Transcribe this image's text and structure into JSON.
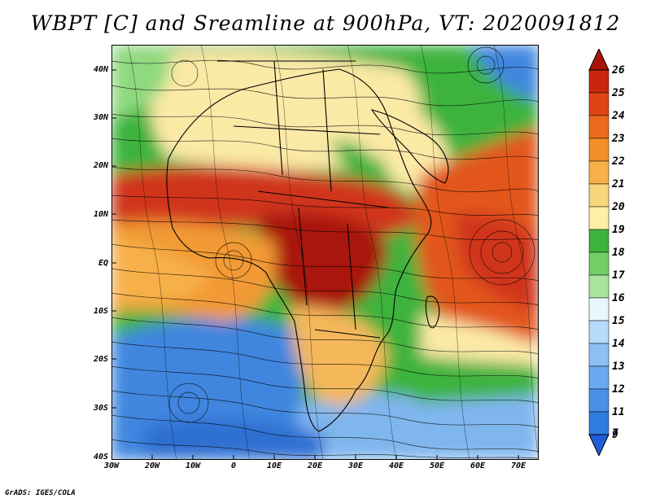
{
  "title": "WBPT [C] and Sreamline at 900hPa, VT: 2020091812",
  "credit": "GrADS: IGES/COLA",
  "latitude_labels": [
    "40N",
    "30N",
    "20N",
    "10N",
    "EQ",
    "10S",
    "20S",
    "30S",
    "40S"
  ],
  "longitude_labels": [
    "30W",
    "20W",
    "10W",
    "0",
    "10E",
    "20E",
    "30E",
    "40E",
    "50E",
    "60E",
    "70E"
  ],
  "colorbar": {
    "levels": [
      "7",
      "9",
      "11",
      "12",
      "13",
      "14",
      "15",
      "16",
      "17",
      "18",
      "19",
      "20",
      "21",
      "22",
      "23",
      "24",
      "25",
      "26"
    ],
    "colors": [
      "#1e5fd6",
      "#2f7be0",
      "#4a90e8",
      "#6aa8ef",
      "#8dc0f5",
      "#b6daf9",
      "#e6f8fb",
      "#a9e49f",
      "#72cf67",
      "#3db33c",
      "#fbf0a3",
      "#f8d67c",
      "#f7b04a",
      "#f28f28",
      "#ec6a1b",
      "#de4514",
      "#c8260e",
      "#a8150a"
    ]
  },
  "map_colors": {
    "ocean_cold": "#3f86df",
    "ocean_cool": "#7fb6ee",
    "green": "#3db33c",
    "light_green": "#8fd97f",
    "pale_yellow": "#fbe9a6",
    "orange": "#f29a36",
    "red": "#d0361a",
    "dark_red": "#a8150a",
    "streamline": "#000000"
  }
}
